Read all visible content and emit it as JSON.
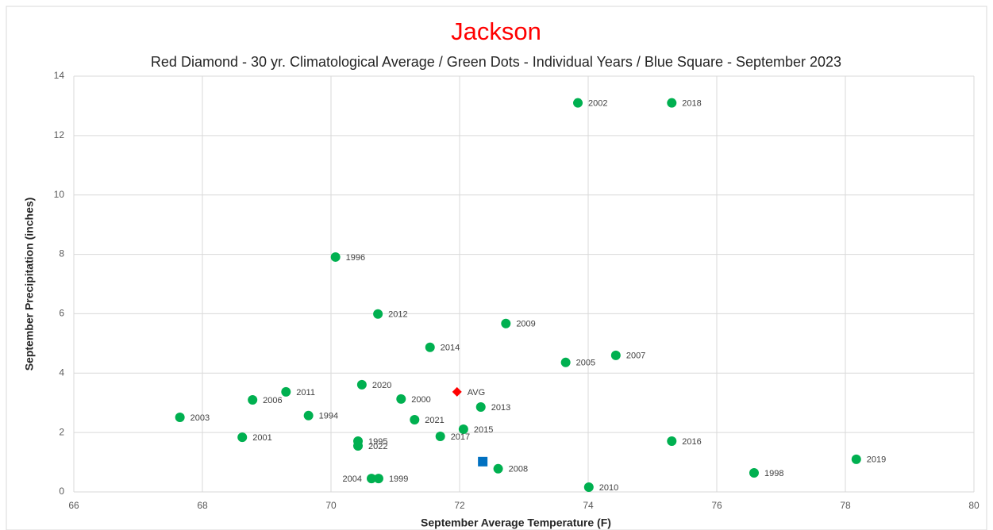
{
  "chart_data": {
    "type": "scatter",
    "title": "Jackson",
    "subtitle": "Red Diamond - 30 yr. Climatological Average / Green Dots - Individual Years / Blue Square - September 2023",
    "x_label": "September Average Temperature (F)",
    "y_label": "September Precipitation (inches)",
    "xlim": [
      66,
      80
    ],
    "xticks": [
      66,
      68,
      70,
      72,
      74,
      76,
      78,
      80
    ],
    "ylim": [
      0,
      14
    ],
    "yticks": [
      0,
      2,
      4,
      6,
      8,
      10,
      12,
      14
    ],
    "grid": true,
    "series": [
      {
        "color": "#00b050",
        "marker": "circle",
        "labels": [
          "2002",
          "2018",
          "1996",
          "2012",
          "2009",
          "2014",
          "2005",
          "2007",
          "2020",
          "2011",
          "2006",
          "2000",
          "2013",
          "2003",
          "1994",
          "2021",
          "2015",
          "2001",
          "2017",
          "1995",
          "2022",
          "2016",
          "2019",
          "1998",
          "2008",
          "2004",
          "1999",
          "2010"
        ],
        "x": [
          73.84,
          75.3,
          70.07,
          70.73,
          72.72,
          71.54,
          73.65,
          74.43,
          70.48,
          69.3,
          68.78,
          71.09,
          72.33,
          67.65,
          69.65,
          71.3,
          72.06,
          68.62,
          71.7,
          70.42,
          70.42,
          75.3,
          78.17,
          76.58,
          72.6,
          70.63,
          70.74,
          74.01
        ],
        "values": [
          13.1,
          13.1,
          7.91,
          5.99,
          5.67,
          4.87,
          4.36,
          4.6,
          3.61,
          3.37,
          3.1,
          3.13,
          2.86,
          2.51,
          2.57,
          2.43,
          2.11,
          1.84,
          1.87,
          1.71,
          1.55,
          1.71,
          1.1,
          0.64,
          0.78,
          0.45,
          0.45,
          0.16
        ]
      },
      {
        "color": "#ff0000",
        "marker": "diamond",
        "labels": [
          "AVG"
        ],
        "x": [
          71.96
        ],
        "values": [
          3.37
        ]
      },
      {
        "color": "#0070c0",
        "marker": "square",
        "x": [
          72.36
        ],
        "values": [
          1.02
        ]
      }
    ]
  }
}
